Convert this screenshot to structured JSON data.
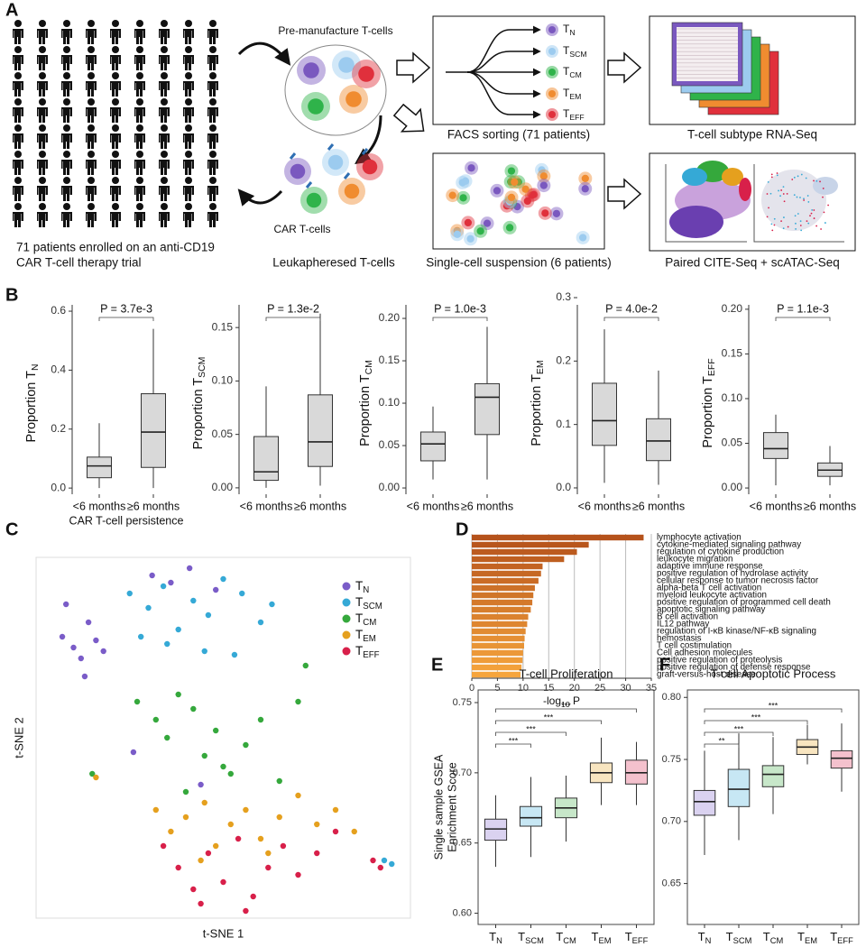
{
  "panels": [
    "A",
    "B",
    "C",
    "D",
    "E",
    "F"
  ],
  "diagram": {
    "cohort": [
      "71 patients enrolled on an anti-CD19",
      "CAR T-cell therapy trial"
    ],
    "premanufacture": "Pre-manufacture T-cells",
    "car": "CAR T-cells",
    "leukapheresed": "Leukapheresed T-cells",
    "facs": "FACS sorting (71 patients)",
    "rnaseq": "T-cell subtype RNA-Seq",
    "singlecell": "Single-cell suspension (6 patients)",
    "citeseq": "Paired CITE-Seq + scATAC-Seq",
    "subtypes": [
      {
        "base": "T",
        "sub": "N",
        "color": "#7a58bf"
      },
      {
        "base": "T",
        "sub": "SCM",
        "color": "#9ccbef"
      },
      {
        "base": "T",
        "sub": "CM",
        "color": "#2fb34a"
      },
      {
        "base": "T",
        "sub": "EM",
        "color": "#f08c30"
      },
      {
        "base": "T",
        "sub": "EFF",
        "color": "#e0303c"
      }
    ]
  },
  "chart_data": [
    {
      "type": "box",
      "ylabel": "Proportion T",
      "ylabel_sub": "N",
      "xlabel": "CAR T-cell persistence",
      "color": "#d9d9d9",
      "categories": [
        "<6 months",
        "≥6 months"
      ],
      "boxes": [
        {
          "whisker_low": 0.0,
          "q1": 0.035,
          "median": 0.075,
          "q3": 0.105,
          "whisker_high": 0.22
        },
        {
          "whisker_low": 0.0,
          "q1": 0.07,
          "median": 0.19,
          "q3": 0.32,
          "whisker_high": 0.54
        }
      ],
      "ylim": [
        -0.021,
        0.646
      ],
      "yticks": [
        {
          "value": 0,
          "label": "0.0"
        },
        0.2,
        0.4,
        0.6
      ],
      "annotations": [
        {
          "text": "P = 3.7e-3",
          "from": 0,
          "to": 1
        }
      ]
    },
    {
      "type": "box",
      "ylabel": "Proportion T",
      "ylabel_sub": "SCM",
      "color": "#d9d9d9",
      "categories": [
        "<6 months",
        "≥6 months"
      ],
      "boxes": [
        {
          "whisker_low": 0.0,
          "q1": 0.007,
          "median": 0.015,
          "q3": 0.048,
          "whisker_high": 0.095
        },
        {
          "whisker_low": 0.002,
          "q1": 0.02,
          "median": 0.043,
          "q3": 0.087,
          "whisker_high": 0.163
        }
      ],
      "ylim": [
        -0.006,
        0.178
      ],
      "yticks": [
        {
          "value": 0,
          "label": "0.00"
        },
        0.05,
        {
          "value": 0.1,
          "label": "0.10"
        },
        0.15
      ],
      "annotations": [
        {
          "text": "P = 1.3e-2",
          "from": 0,
          "to": 1
        }
      ]
    },
    {
      "type": "box",
      "ylabel": "Proportion T",
      "ylabel_sub": "CM",
      "color": "#d9d9d9",
      "categories": [
        "<6 months",
        "≥6 months"
      ],
      "boxes": [
        {
          "whisker_low": 0.01,
          "q1": 0.032,
          "median": 0.052,
          "q3": 0.066,
          "whisker_high": 0.096
        },
        {
          "whisker_low": 0.01,
          "q1": 0.063,
          "median": 0.107,
          "q3": 0.123,
          "whisker_high": 0.19
        }
      ],
      "ylim": [
        -0.0074,
        0.2245
      ],
      "yticks": [
        {
          "value": 0,
          "label": "0.00"
        },
        0.05,
        {
          "value": 0.1,
          "label": "0.10"
        },
        0.15,
        {
          "value": 0.2,
          "label": "0.20"
        }
      ],
      "annotations": [
        {
          "text": "P = 1.0e-3",
          "from": 0,
          "to": 1
        }
      ]
    },
    {
      "type": "box",
      "ylabel": "Proportion T",
      "ylabel_sub": "EM",
      "color": "#d9d9d9",
      "categories": [
        "<6 months",
        "≥6 months"
      ],
      "boxes": [
        {
          "whisker_low": 0.008,
          "q1": 0.067,
          "median": 0.106,
          "q3": 0.165,
          "whisker_high": 0.25
        },
        {
          "whisker_low": 0.005,
          "q1": 0.043,
          "median": 0.074,
          "q3": 0.109,
          "whisker_high": 0.185
        }
      ],
      "ylim": [
        -0.01,
        0.3
      ],
      "yticks": [
        {
          "value": 0,
          "label": "0.0"
        },
        0.1,
        0.2,
        0.3
      ],
      "annotations": [
        {
          "text": "P = 4.0e-2",
          "from": 0,
          "to": 1
        }
      ]
    },
    {
      "type": "box",
      "ylabel": "Proportion T",
      "ylabel_sub": "EFF",
      "color": "#d9d9d9",
      "categories": [
        "<6 months",
        "≥6 months"
      ],
      "boxes": [
        {
          "whisker_low": 0.003,
          "q1": 0.033,
          "median": 0.044,
          "q3": 0.062,
          "whisker_high": 0.082
        },
        {
          "whisker_low": 0.003,
          "q1": 0.013,
          "median": 0.02,
          "q3": 0.028,
          "whisker_high": 0.047
        }
      ],
      "ylim": [
        -0.007,
        0.213
      ],
      "yticks": [
        {
          "value": 0,
          "label": "0.00"
        },
        0.05,
        {
          "value": 0.1,
          "label": "0.10"
        },
        0.15,
        {
          "value": 0.2,
          "label": "0.20"
        }
      ],
      "annotations": [
        {
          "text": "P = 1.1e-3",
          "from": 0,
          "to": 1
        }
      ]
    },
    {
      "type": "scatter",
      "xlabel": "t-SNE 1",
      "ylabel": "t-SNE 2",
      "xlim": [
        0,
        100
      ],
      "ylim": [
        0,
        100
      ],
      "series": [
        {
          "name": "T",
          "name_sub": "N",
          "color": "#7a5cc8",
          "x": [
            7,
            10,
            12,
            16,
            18,
            8,
            14,
            31,
            36,
            41,
            48,
            26,
            44,
            13
          ],
          "y": [
            78,
            75,
            72,
            77,
            74,
            87,
            82,
            95,
            93,
            97,
            91,
            46,
            37,
            67
          ]
        },
        {
          "name": "T",
          "name_sub": "SCM",
          "color": "#35a9d6",
          "x": [
            25,
            30,
            34,
            38,
            42,
            46,
            50,
            55,
            60,
            63,
            35,
            45,
            28,
            53,
            93,
            95
          ],
          "y": [
            90,
            86,
            92,
            80,
            88,
            84,
            94,
            90,
            82,
            87,
            76,
            74,
            78,
            73,
            16,
            15
          ]
        },
        {
          "name": "T",
          "name_sub": "CM",
          "color": "#35a83c",
          "x": [
            27,
            32,
            35,
            38,
            42,
            45,
            48,
            52,
            56,
            60,
            65,
            70,
            40,
            50,
            15,
            72
          ],
          "y": [
            60,
            55,
            50,
            62,
            58,
            45,
            52,
            40,
            48,
            55,
            38,
            60,
            35,
            42,
            40,
            70
          ]
        },
        {
          "name": "T",
          "name_sub": "EM",
          "color": "#e5a01e",
          "x": [
            32,
            36,
            40,
            45,
            48,
            52,
            56,
            60,
            65,
            70,
            75,
            80,
            85,
            44,
            16,
            62
          ],
          "y": [
            30,
            24,
            28,
            32,
            20,
            26,
            30,
            22,
            28,
            34,
            26,
            30,
            24,
            16,
            39,
            18
          ]
        },
        {
          "name": "T",
          "name_sub": "EFF",
          "color": "#d8204a",
          "x": [
            34,
            38,
            42,
            46,
            50,
            54,
            58,
            62,
            66,
            70,
            75,
            80,
            44,
            56,
            90,
            92
          ],
          "y": [
            20,
            14,
            8,
            18,
            10,
            22,
            6,
            14,
            20,
            12,
            18,
            24,
            4,
            2,
            16,
            14
          ]
        }
      ]
    },
    {
      "type": "bar",
      "xlabel": "-log",
      "xlabel_sub": "10",
      "xlabel_after": " P",
      "grid": true,
      "color_range": [
        "#b5521b",
        "#f6a53d"
      ],
      "categories": [
        "lymphocyte activation",
        "cytokine-mediated signaling pathway",
        "regulation of cytokine production",
        "leukocyte migration",
        "adaptive immune response",
        "positive regulation of hydrolase activity",
        "cellular response to tumor necrosis factor",
        "alpha-beta T cell activation",
        "myeloid leukocyte activation",
        "positive regulation of programmed cell death",
        "apoptotic signaling pathway",
        "B cell activation",
        "IL12 pathway",
        "regulation of I-κB kinase/NF-κB signaling",
        "hemostasis",
        "T cell costimulation",
        "Cell adhesion molecules",
        "positive regulation of proteolysis",
        "positive regulation of defense response",
        "graft-versus-host disease"
      ],
      "values": [
        33.5,
        22.8,
        20.5,
        18,
        13.8,
        13.5,
        13,
        12.3,
        12,
        11.8,
        11.5,
        11,
        10.8,
        10.5,
        10.3,
        10.2,
        10,
        9.9,
        9.7,
        9.5
      ],
      "xlim": [
        0,
        35
      ],
      "xticks": [
        0,
        5,
        10,
        15,
        20,
        25,
        30,
        35
      ]
    },
    {
      "type": "box",
      "title": "T-cell Proliferation",
      "ylabel": [
        "Single sample GSEA",
        "Enrichment Score"
      ],
      "frame": true,
      "colors": [
        "#7a5cc8",
        "#35a9d6",
        "#35a83c",
        "#e5a01e",
        "#d8204a"
      ],
      "categories": [
        {
          "base": "T",
          "sub": "N"
        },
        {
          "base": "T",
          "sub": "SCM"
        },
        {
          "base": "T",
          "sub": "CM"
        },
        {
          "base": "T",
          "sub": "EM"
        },
        {
          "base": "T",
          "sub": "EFF"
        }
      ],
      "boxes": [
        {
          "whisker_low": 0.633,
          "q1": 0.652,
          "median": 0.66,
          "q3": 0.667,
          "whisker_high": 0.684
        },
        {
          "whisker_low": 0.64,
          "q1": 0.662,
          "median": 0.668,
          "q3": 0.676,
          "whisker_high": 0.697
        },
        {
          "whisker_low": 0.651,
          "q1": 0.668,
          "median": 0.675,
          "q3": 0.682,
          "whisker_high": 0.698
        },
        {
          "whisker_low": 0.677,
          "q1": 0.693,
          "median": 0.7,
          "q3": 0.707,
          "whisker_high": 0.725
        },
        {
          "whisker_low": 0.677,
          "q1": 0.692,
          "median": 0.7,
          "q3": 0.709,
          "whisker_high": 0.722
        }
      ],
      "ylim": [
        0.592,
        0.759
      ],
      "yticks": [
        {
          "value": 0.6,
          "label": "0.60"
        },
        0.65,
        {
          "value": 0.7,
          "label": "0.70"
        },
        0.75
      ],
      "annotations": [
        {
          "text": "***",
          "from": 0,
          "to": 1
        },
        {
          "text": "***",
          "from": 0,
          "to": 2
        },
        {
          "text": "***",
          "from": 0,
          "to": 3
        },
        {
          "text": "***",
          "from": 0,
          "to": 4
        }
      ]
    },
    {
      "type": "box",
      "title": "T-cell Apoptotic Process",
      "frame": true,
      "colors": [
        "#7a5cc8",
        "#35a9d6",
        "#35a83c",
        "#e5a01e",
        "#d8204a"
      ],
      "categories": [
        {
          "base": "T",
          "sub": "N"
        },
        {
          "base": "T",
          "sub": "SCM"
        },
        {
          "base": "T",
          "sub": "CM"
        },
        {
          "base": "T",
          "sub": "EM"
        },
        {
          "base": "T",
          "sub": "EFF"
        }
      ],
      "boxes": [
        {
          "whisker_low": 0.673,
          "q1": 0.705,
          "median": 0.716,
          "q3": 0.725,
          "whisker_high": 0.757
        },
        {
          "whisker_low": 0.685,
          "q1": 0.712,
          "median": 0.726,
          "q3": 0.742,
          "whisker_high": 0.771
        },
        {
          "whisker_low": 0.706,
          "q1": 0.728,
          "median": 0.738,
          "q3": 0.745,
          "whisker_high": 0.768
        },
        {
          "whisker_low": 0.746,
          "q1": 0.754,
          "median": 0.76,
          "q3": 0.766,
          "whisker_high": 0.778
        },
        {
          "whisker_low": 0.724,
          "q1": 0.743,
          "median": 0.751,
          "q3": 0.757,
          "whisker_high": 0.779
        }
      ],
      "ylim": [
        0.617,
        0.806
      ],
      "yticks": [
        0.65,
        {
          "value": 0.7,
          "label": "0.70"
        },
        0.75,
        {
          "value": 0.8,
          "label": "0.80"
        }
      ],
      "annotations": [
        {
          "text": "**",
          "from": 0,
          "to": 1
        },
        {
          "text": "***",
          "from": 0,
          "to": 2
        },
        {
          "text": "***",
          "from": 0,
          "to": 3
        },
        {
          "text": "***",
          "from": 0,
          "to": 4
        }
      ]
    }
  ]
}
